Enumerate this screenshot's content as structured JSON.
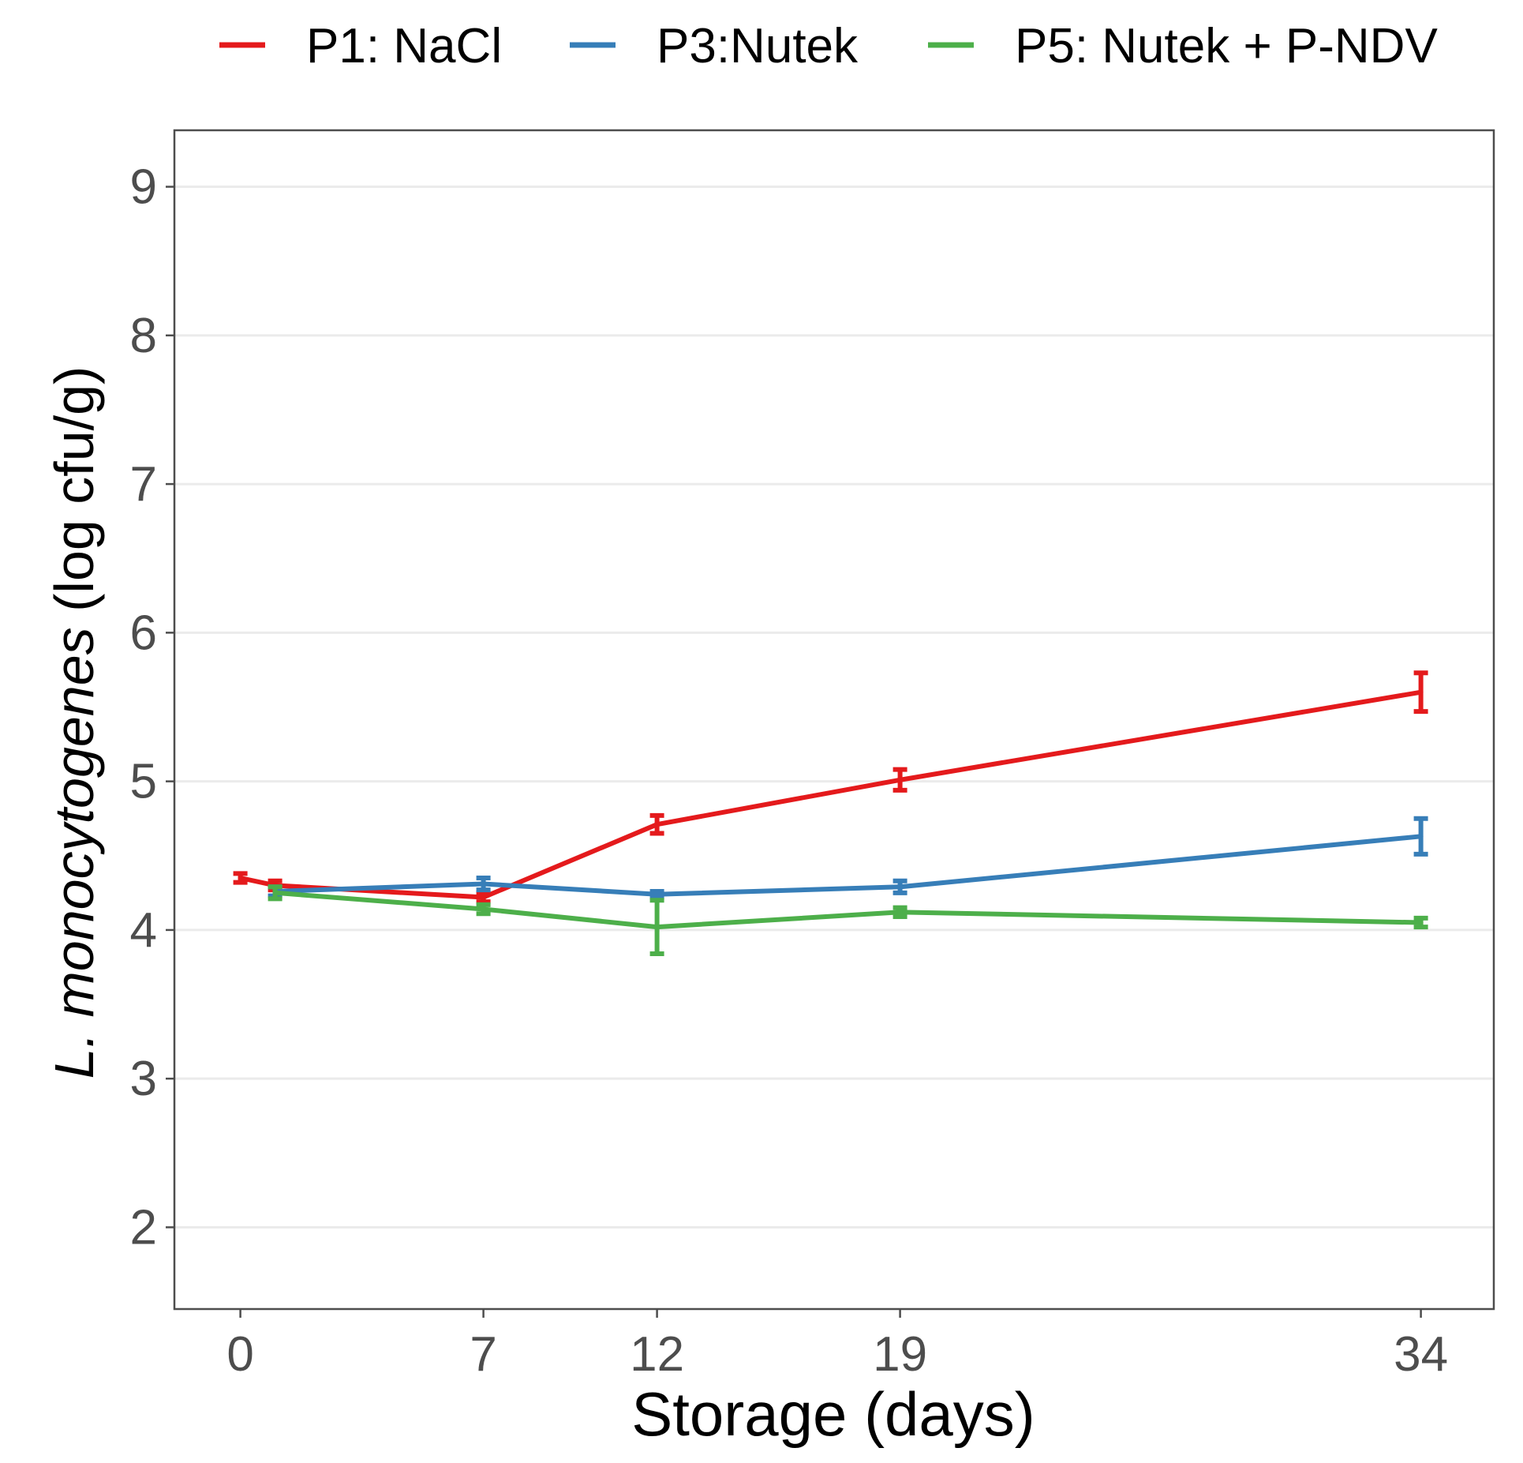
{
  "chart_data": {
    "type": "line",
    "title": "",
    "xlabel": "Storage (days)",
    "ylabel_italic": "L. monocytogenes",
    "ylabel_rest": " (log cfu/g)",
    "x": [
      0,
      7,
      12,
      19,
      34
    ],
    "x_ticks": [
      0,
      7,
      12,
      19,
      34
    ],
    "y_ticks": [
      2,
      3,
      4,
      5,
      6,
      7,
      8,
      9
    ],
    "xlim": [
      -1.9,
      36.1
    ],
    "ylim": [
      1.45,
      9.38
    ],
    "grid": true,
    "legend_position": "top",
    "series": [
      {
        "name": "P1: NaCl",
        "color": "#e41a1c",
        "points": [
          {
            "x": 0,
            "y": 4.35,
            "err": 0.03
          },
          {
            "x": 1,
            "y": 4.3,
            "err": 0.03
          },
          {
            "x": 7,
            "y": 4.22,
            "err": 0.03
          },
          {
            "x": 12,
            "y": 4.71,
            "err": 0.06
          },
          {
            "x": 19,
            "y": 5.01,
            "err": 0.07
          },
          {
            "x": 34,
            "y": 5.6,
            "err": 0.13
          }
        ]
      },
      {
        "name": "P3:Nutek",
        "color": "#377eb8",
        "points": [
          {
            "x": 1,
            "y": 4.26,
            "err": 0.03
          },
          {
            "x": 7,
            "y": 4.31,
            "err": 0.04
          },
          {
            "x": 12,
            "y": 4.24,
            "err": 0.02
          },
          {
            "x": 19,
            "y": 4.29,
            "err": 0.04
          },
          {
            "x": 34,
            "y": 4.63,
            "err": 0.12
          }
        ]
      },
      {
        "name": "P5: Nutek + P-NDV",
        "color": "#4daf4a",
        "points": [
          {
            "x": 1,
            "y": 4.25,
            "err": 0.04
          },
          {
            "x": 7,
            "y": 4.14,
            "err": 0.03
          },
          {
            "x": 12,
            "y": 4.02,
            "err": 0.18
          },
          {
            "x": 19,
            "y": 4.12,
            "err": 0.03
          },
          {
            "x": 34,
            "y": 4.05,
            "err": 0.03
          }
        ]
      }
    ]
  }
}
